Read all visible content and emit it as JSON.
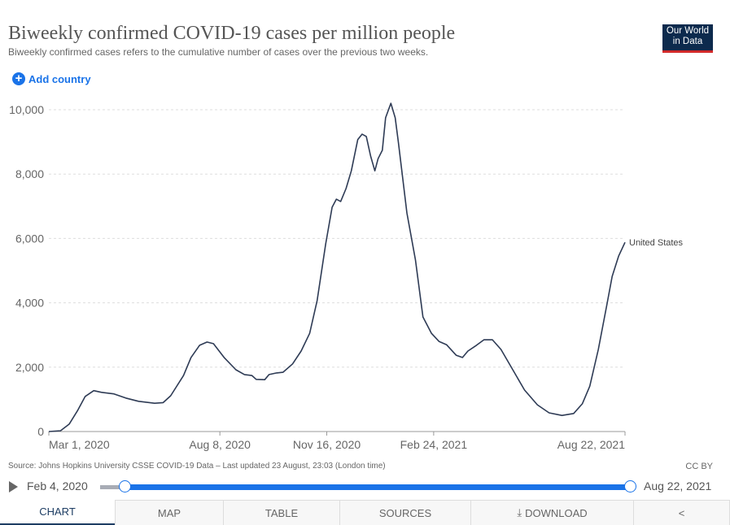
{
  "header": {
    "title": "Biweekly confirmed COVID-19 cases per million people",
    "subtitle": "Biweekly confirmed cases refers to the cumulative number of cases over the previous two weeks.",
    "logo_line1": "Our World",
    "logo_line2": "in Data",
    "add_country": "Add country"
  },
  "chart_data": {
    "type": "line",
    "title": "Biweekly confirmed COVID-19 cases per million people",
    "xlabel": "",
    "ylabel": "",
    "x_start_date": "2020-03-01",
    "x_unit": "days since Mar 1, 2020",
    "xlim": [
      0,
      539
    ],
    "ylim": [
      0,
      10000
    ],
    "grid": true,
    "y_ticks": [
      {
        "v": 0,
        "label": "0"
      },
      {
        "v": 2000,
        "label": "2,000"
      },
      {
        "v": 4000,
        "label": "4,000"
      },
      {
        "v": 6000,
        "label": "6,000"
      },
      {
        "v": 8000,
        "label": "8,000"
      },
      {
        "v": 10000,
        "label": "10,000"
      }
    ],
    "x_ticks": [
      {
        "v": 0,
        "label": "Mar 1, 2020"
      },
      {
        "v": 160,
        "label": "Aug 8, 2020"
      },
      {
        "v": 260,
        "label": "Nov 16, 2020"
      },
      {
        "v": 360,
        "label": "Feb 24, 2021"
      },
      {
        "v": 539,
        "label": "Aug 22, 2021"
      }
    ],
    "series": [
      {
        "name": "United States",
        "color": "#2e3b55",
        "points": [
          [
            0,
            0
          ],
          [
            11,
            25
          ],
          [
            19,
            230
          ],
          [
            27,
            660
          ],
          [
            34,
            1090
          ],
          [
            42,
            1270
          ],
          [
            49,
            1220
          ],
          [
            61,
            1170
          ],
          [
            72,
            1040
          ],
          [
            84,
            940
          ],
          [
            99,
            880
          ],
          [
            107,
            900
          ],
          [
            114,
            1110
          ],
          [
            126,
            1740
          ],
          [
            133,
            2300
          ],
          [
            141,
            2680
          ],
          [
            148,
            2780
          ],
          [
            154,
            2730
          ],
          [
            164,
            2300
          ],
          [
            175,
            1920
          ],
          [
            183,
            1770
          ],
          [
            190,
            1740
          ],
          [
            194,
            1620
          ],
          [
            202,
            1610
          ],
          [
            206,
            1770
          ],
          [
            213,
            1820
          ],
          [
            219,
            1840
          ],
          [
            228,
            2100
          ],
          [
            236,
            2500
          ],
          [
            244,
            3050
          ],
          [
            251,
            4070
          ],
          [
            259,
            5830
          ],
          [
            265,
            6970
          ],
          [
            269,
            7220
          ],
          [
            273,
            7150
          ],
          [
            278,
            7550
          ],
          [
            283,
            8100
          ],
          [
            289,
            9070
          ],
          [
            293,
            9240
          ],
          [
            297,
            9170
          ],
          [
            301,
            8560
          ],
          [
            305,
            8100
          ],
          [
            308,
            8480
          ],
          [
            312,
            8740
          ],
          [
            315,
            9750
          ],
          [
            320,
            10200
          ],
          [
            324,
            9750
          ],
          [
            327,
            8990
          ],
          [
            335,
            6790
          ],
          [
            343,
            5330
          ],
          [
            350,
            3560
          ],
          [
            358,
            3050
          ],
          [
            365,
            2800
          ],
          [
            372,
            2700
          ],
          [
            381,
            2370
          ],
          [
            387,
            2300
          ],
          [
            392,
            2500
          ],
          [
            400,
            2680
          ],
          [
            407,
            2850
          ],
          [
            415,
            2850
          ],
          [
            423,
            2550
          ],
          [
            434,
            1920
          ],
          [
            445,
            1290
          ],
          [
            457,
            830
          ],
          [
            468,
            580
          ],
          [
            480,
            500
          ],
          [
            491,
            560
          ],
          [
            499,
            860
          ],
          [
            506,
            1410
          ],
          [
            514,
            2550
          ],
          [
            522,
            3940
          ],
          [
            527,
            4820
          ],
          [
            533,
            5450
          ],
          [
            539,
            5880
          ]
        ]
      }
    ]
  },
  "footer": {
    "source": "Source: Johns Hopkins University CSSE COVID-19 Data – Last updated 23 August, 23:03 (London time)",
    "license": "CC BY"
  },
  "timeline": {
    "start": "Feb 4, 2020",
    "end": "Aug 22, 2021"
  },
  "tabs": {
    "chart": "CHART",
    "map": "MAP",
    "table": "TABLE",
    "sources": "SOURCES",
    "download": "DOWNLOAD"
  }
}
